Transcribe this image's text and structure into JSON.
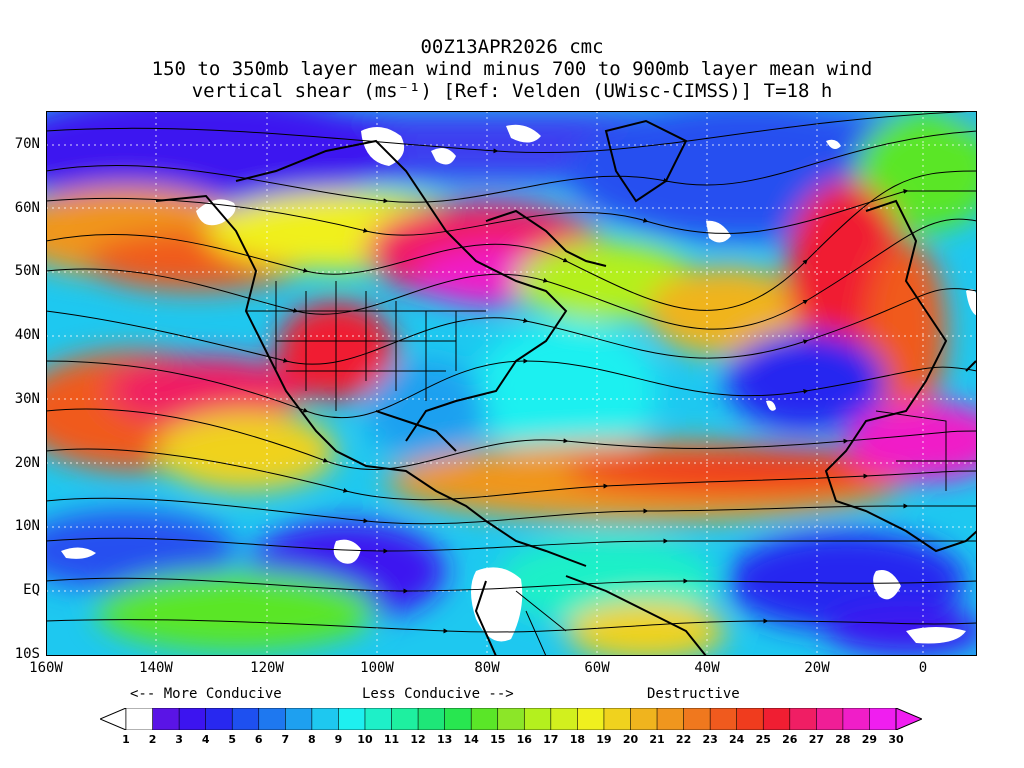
{
  "title": {
    "line1": "00Z13APR2026 cmc",
    "line2": "150 to 350mb layer mean wind minus 700 to 900mb layer mean wind",
    "line3": "vertical shear (ms⁻¹) [Ref: Velden (UWisc-CIMSS)] T=18 h"
  },
  "axes": {
    "lat_labels": [
      "70N",
      "60N",
      "50N",
      "40N",
      "30N",
      "20N",
      "10N",
      "EQ",
      "10S"
    ],
    "lon_labels": [
      "160W",
      "140W",
      "120W",
      "100W",
      "80W",
      "60W",
      "40W",
      "20W",
      "0"
    ]
  },
  "legend": {
    "more_conducive": "<-- More Conducive",
    "less_conducive": "Less Conducive -->",
    "destructive": "Destructive",
    "ticks": [
      "1",
      "2",
      "3",
      "4",
      "5",
      "6",
      "7",
      "8",
      "9",
      "10",
      "11",
      "12",
      "13",
      "14",
      "15",
      "16",
      "17",
      "18",
      "19",
      "20",
      "21",
      "22",
      "23",
      "24",
      "25",
      "26",
      "27",
      "28",
      "29",
      "30"
    ],
    "colors": [
      "#ffffff",
      "#5a14e6",
      "#3c14f0",
      "#2828f0",
      "#1e50f0",
      "#1e78f0",
      "#1ea0f0",
      "#1ec8f0",
      "#1ef0f0",
      "#1ef0c8",
      "#1ef0a0",
      "#1ee678",
      "#28e650",
      "#5ae628",
      "#8ce628",
      "#b4f01e",
      "#d2f01e",
      "#f0f01e",
      "#f0d21e",
      "#f0b41e",
      "#f0961e",
      "#f0781e",
      "#f05a1e",
      "#f03c1e",
      "#f01e32",
      "#f01e64",
      "#f01e96",
      "#f01ec8",
      "#f01ef0"
    ]
  },
  "map_colors": {
    "ocean_base": "#1ec8f0",
    "land_line": "#000000",
    "streamline": "#000000"
  }
}
